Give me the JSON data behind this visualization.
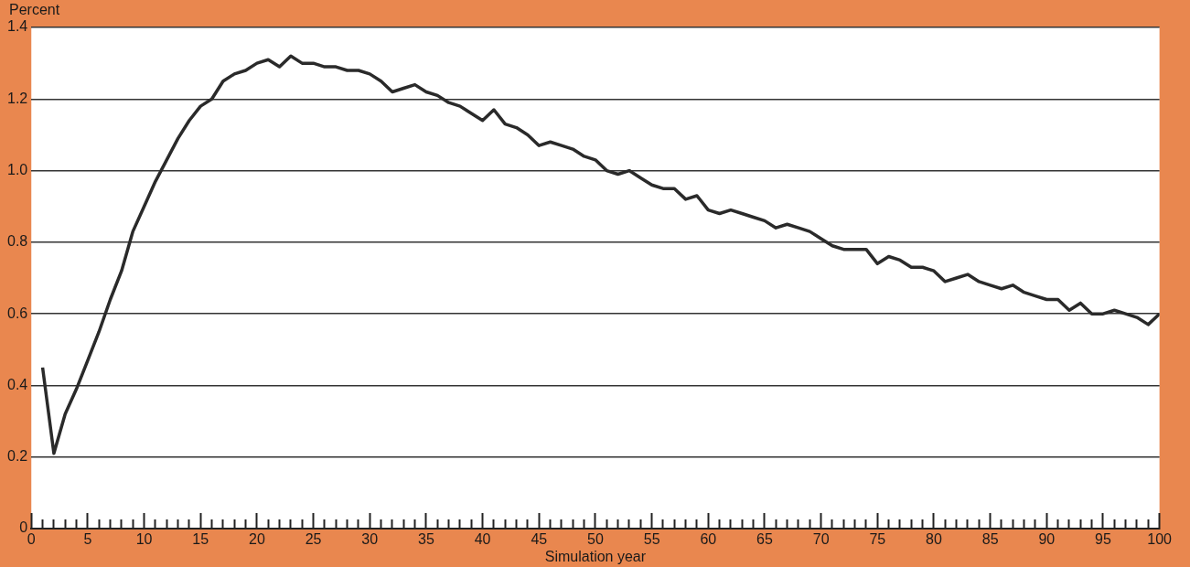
{
  "chart_data": {
    "type": "line",
    "xlabel": "Simulation year",
    "ylabel": "Percent",
    "x": [
      1,
      2,
      3,
      4,
      5,
      6,
      7,
      8,
      9,
      10,
      11,
      12,
      13,
      14,
      15,
      16,
      17,
      18,
      19,
      20,
      21,
      22,
      23,
      24,
      25,
      26,
      27,
      28,
      29,
      30,
      31,
      32,
      33,
      34,
      35,
      36,
      37,
      38,
      39,
      40,
      41,
      42,
      43,
      44,
      45,
      46,
      47,
      48,
      49,
      50,
      51,
      52,
      53,
      54,
      55,
      56,
      57,
      58,
      59,
      60,
      61,
      62,
      63,
      64,
      65,
      66,
      67,
      68,
      69,
      70,
      71,
      72,
      73,
      74,
      75,
      76,
      77,
      78,
      79,
      80,
      81,
      82,
      83,
      84,
      85,
      86,
      87,
      88,
      89,
      90,
      91,
      92,
      93,
      94,
      95,
      96,
      97,
      98,
      99,
      100
    ],
    "series": [
      {
        "color": "#2a2a2a",
        "values": [
          0.45,
          0.21,
          0.32,
          0.39,
          0.47,
          0.55,
          0.64,
          0.72,
          0.83,
          0.9,
          0.97,
          1.03,
          1.09,
          1.14,
          1.18,
          1.2,
          1.25,
          1.27,
          1.28,
          1.3,
          1.31,
          1.29,
          1.32,
          1.3,
          1.3,
          1.29,
          1.29,
          1.28,
          1.28,
          1.27,
          1.25,
          1.22,
          1.23,
          1.24,
          1.22,
          1.21,
          1.19,
          1.18,
          1.16,
          1.14,
          1.17,
          1.13,
          1.12,
          1.1,
          1.07,
          1.08,
          1.07,
          1.06,
          1.04,
          1.03,
          1.0,
          0.99,
          1.0,
          0.98,
          0.96,
          0.95,
          0.95,
          0.92,
          0.93,
          0.89,
          0.88,
          0.89,
          0.88,
          0.87,
          0.86,
          0.84,
          0.85,
          0.84,
          0.83,
          0.81,
          0.79,
          0.78,
          0.78,
          0.78,
          0.74,
          0.76,
          0.75,
          0.73,
          0.73,
          0.72,
          0.69,
          0.7,
          0.71,
          0.69,
          0.68,
          0.67,
          0.68,
          0.66,
          0.65,
          0.64,
          0.64,
          0.61,
          0.63,
          0.6,
          0.6,
          0.61,
          0.6,
          0.59,
          0.57,
          0.6
        ]
      }
    ],
    "xlim": [
      0,
      100
    ],
    "xticks": [
      0,
      {
        "value": 1,
        "label": null
      },
      {
        "value": 2,
        "label": null
      },
      {
        "value": 3,
        "label": null
      },
      {
        "value": 4,
        "label": null
      },
      5,
      {
        "value": 6,
        "label": null
      },
      {
        "value": 7,
        "label": null
      },
      {
        "value": 8,
        "label": null
      },
      {
        "value": 9,
        "label": null
      },
      10,
      {
        "value": 11,
        "label": null
      },
      {
        "value": 12,
        "label": null
      },
      {
        "value": 13,
        "label": null
      },
      {
        "value": 14,
        "label": null
      },
      15,
      {
        "value": 16,
        "label": null
      },
      {
        "value": 17,
        "label": null
      },
      {
        "value": 18,
        "label": null
      },
      {
        "value": 19,
        "label": null
      },
      20,
      {
        "value": 21,
        "label": null
      },
      {
        "value": 22,
        "label": null
      },
      {
        "value": 23,
        "label": null
      },
      {
        "value": 24,
        "label": null
      },
      25,
      {
        "value": 26,
        "label": null
      },
      {
        "value": 27,
        "label": null
      },
      {
        "value": 28,
        "label": null
      },
      {
        "value": 29,
        "label": null
      },
      30,
      {
        "value": 31,
        "label": null
      },
      {
        "value": 32,
        "label": null
      },
      {
        "value": 33,
        "label": null
      },
      {
        "value": 34,
        "label": null
      },
      35,
      {
        "value": 36,
        "label": null
      },
      {
        "value": 37,
        "label": null
      },
      {
        "value": 38,
        "label": null
      },
      {
        "value": 39,
        "label": null
      },
      40,
      {
        "value": 41,
        "label": null
      },
      {
        "value": 42,
        "label": null
      },
      {
        "value": 43,
        "label": null
      },
      {
        "value": 44,
        "label": null
      },
      45,
      {
        "value": 46,
        "label": null
      },
      {
        "value": 47,
        "label": null
      },
      {
        "value": 48,
        "label": null
      },
      {
        "value": 49,
        "label": null
      },
      50,
      {
        "value": 51,
        "label": null
      },
      {
        "value": 52,
        "label": null
      },
      {
        "value": 53,
        "label": null
      },
      {
        "value": 54,
        "label": null
      },
      55,
      {
        "value": 56,
        "label": null
      },
      {
        "value": 57,
        "label": null
      },
      {
        "value": 58,
        "label": null
      },
      {
        "value": 59,
        "label": null
      },
      60,
      {
        "value": 61,
        "label": null
      },
      {
        "value": 62,
        "label": null
      },
      {
        "value": 63,
        "label": null
      },
      {
        "value": 64,
        "label": null
      },
      65,
      {
        "value": 66,
        "label": null
      },
      {
        "value": 67,
        "label": null
      },
      {
        "value": 68,
        "label": null
      },
      {
        "value": 69,
        "label": null
      },
      70,
      {
        "value": 71,
        "label": null
      },
      {
        "value": 72,
        "label": null
      },
      {
        "value": 73,
        "label": null
      },
      {
        "value": 74,
        "label": null
      },
      75,
      {
        "value": 76,
        "label": null
      },
      {
        "value": 77,
        "label": null
      },
      {
        "value": 78,
        "label": null
      },
      {
        "value": 79,
        "label": null
      },
      80,
      {
        "value": 81,
        "label": null
      },
      {
        "value": 82,
        "label": null
      },
      {
        "value": 83,
        "label": null
      },
      {
        "value": 84,
        "label": null
      },
      85,
      {
        "value": 86,
        "label": null
      },
      {
        "value": 87,
        "label": null
      },
      {
        "value": 88,
        "label": null
      },
      {
        "value": 89,
        "label": null
      },
      90,
      {
        "value": 91,
        "label": null
      },
      {
        "value": 92,
        "label": null
      },
      {
        "value": 93,
        "label": null
      },
      {
        "value": 94,
        "label": null
      },
      95,
      {
        "value": 96,
        "label": null
      },
      {
        "value": 97,
        "label": null
      },
      {
        "value": 98,
        "label": null
      },
      {
        "value": 99,
        "label": null
      },
      100
    ],
    "ylim": [
      0,
      1.4
    ],
    "yticks": [
      0,
      0.2,
      0.4,
      0.6,
      0.8,
      {
        "value": 1,
        "label": "1.0"
      },
      1.2,
      1.4
    ],
    "grid": "y",
    "legend": false,
    "marker": "none",
    "line_style": "solid"
  }
}
